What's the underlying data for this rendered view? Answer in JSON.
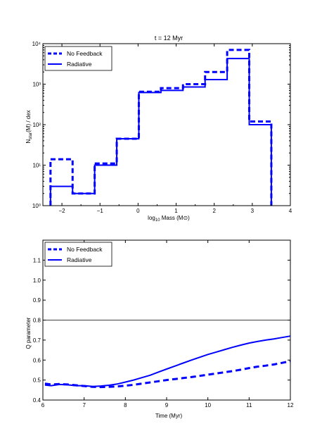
{
  "chart_data": [
    {
      "type": "line",
      "step": true,
      "title": "t = 12 Myr",
      "xlabel": "log10 Mass (M⊙)",
      "ylabel": "Nstar(M) / dex",
      "xlim": [
        -2.5,
        4
      ],
      "ylim": [
        1,
        10000
      ],
      "yscale": "log",
      "legend_position": "top-left",
      "x_ticks": [
        -2,
        -1,
        0,
        1,
        2,
        3,
        4
      ],
      "y_ticks": [
        1,
        10,
        100,
        1000,
        10000
      ],
      "y_tick_labels": [
        "10⁰",
        "10¹",
        "10²",
        "10³",
        "10⁴"
      ],
      "bin_edges": [
        -2.3,
        -1.72,
        -1.14,
        -0.56,
        0.02,
        0.6,
        1.18,
        1.76,
        2.34,
        2.92,
        3.5
      ],
      "series": [
        {
          "name": "No Feedback",
          "style": "dashed",
          "color": "#0000ff",
          "values": [
            14,
            2,
            11,
            45,
            650,
            800,
            1000,
            2000,
            7000,
            120
          ]
        },
        {
          "name": "Radiative",
          "style": "solid",
          "color": "#0000ff",
          "values": [
            3,
            2,
            10,
            45,
            620,
            700,
            850,
            1300,
            4300,
            100
          ]
        }
      ]
    },
    {
      "type": "line",
      "title": "",
      "xlabel": "Time (Myr)",
      "ylabel": "Q parameter",
      "xlim": [
        6,
        12
      ],
      "ylim": [
        0.4,
        1.2
      ],
      "legend_position": "top-left",
      "x_ticks": [
        6,
        7,
        8,
        9,
        10,
        11,
        12
      ],
      "y_ticks": [
        0.4,
        0.5,
        0.6,
        0.7,
        0.8,
        0.9,
        1.0,
        1.1
      ],
      "y_tick_labels": [
        "0.4",
        "0.5",
        "0.6",
        "0.7",
        "0.8",
        "0.9",
        "1.0",
        "1.1"
      ],
      "hline": 0.8,
      "series": [
        {
          "name": "No Feedback",
          "style": "dashed",
          "color": "#0000ff",
          "x": [
            6.05,
            6.2,
            6.4,
            6.6,
            6.8,
            7.0,
            7.2,
            7.4,
            7.6,
            7.8,
            8.0,
            8.2,
            8.4,
            8.6,
            8.8,
            9.0,
            9.2,
            9.4,
            9.6,
            9.8,
            10.0,
            10.2,
            10.4,
            10.6,
            10.8,
            11.0,
            11.2,
            11.4,
            11.6,
            11.8,
            12.0
          ],
          "y": [
            0.482,
            0.478,
            0.48,
            0.478,
            0.474,
            0.47,
            0.466,
            0.465,
            0.466,
            0.468,
            0.472,
            0.476,
            0.482,
            0.488,
            0.494,
            0.5,
            0.505,
            0.51,
            0.515,
            0.521,
            0.527,
            0.533,
            0.539,
            0.545,
            0.552,
            0.56,
            0.567,
            0.572,
            0.578,
            0.586,
            0.595
          ]
        },
        {
          "name": "Radiative",
          "style": "solid",
          "color": "#0000ff",
          "x": [
            6.05,
            6.2,
            6.4,
            6.6,
            6.8,
            7.0,
            7.2,
            7.4,
            7.6,
            7.8,
            8.0,
            8.2,
            8.4,
            8.6,
            8.8,
            9.0,
            9.2,
            9.4,
            9.6,
            9.8,
            10.0,
            10.2,
            10.4,
            10.6,
            10.8,
            11.0,
            11.2,
            11.4,
            11.6,
            11.8,
            12.0
          ],
          "y": [
            0.475,
            0.472,
            0.478,
            0.476,
            0.472,
            0.472,
            0.468,
            0.47,
            0.474,
            0.48,
            0.49,
            0.5,
            0.512,
            0.524,
            0.54,
            0.555,
            0.57,
            0.585,
            0.6,
            0.614,
            0.628,
            0.64,
            0.652,
            0.664,
            0.675,
            0.685,
            0.693,
            0.7,
            0.706,
            0.713,
            0.72
          ]
        }
      ]
    }
  ]
}
